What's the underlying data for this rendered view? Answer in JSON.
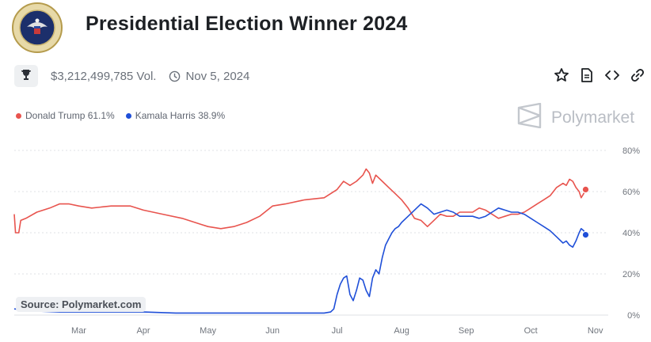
{
  "header": {
    "title": "Presidential Election Winner 2024",
    "volume": "$3,212,499,785 Vol.",
    "date": "Nov 5, 2024"
  },
  "seal_text": "SEAL OF THE PRESIDENT OF THE UNITED STATES",
  "actions": {
    "icons": [
      "star-icon",
      "document-icon",
      "code-icon",
      "link-icon"
    ]
  },
  "brand": {
    "name": "Polymarket"
  },
  "legend": {
    "trump_label": "Donald Trump 61.1%",
    "harris_label": "Kamala Harris 38.9%"
  },
  "source": "Source: Polymarket.com",
  "colors": {
    "trump": "#e8544e",
    "harris": "#1f4fd8",
    "grid": "#dfe2e6"
  },
  "chart_data": {
    "type": "line",
    "y_ticks": [
      "0%",
      "20%",
      "40%",
      "60%",
      "80%"
    ],
    "ylim": [
      0,
      80
    ],
    "x_ticks": [
      "Mar",
      "Apr",
      "May",
      "Jun",
      "Jul",
      "Aug",
      "Sep",
      "Oct",
      "Nov"
    ],
    "x_tick_pos": [
      2.0,
      3.0,
      4.0,
      5.0,
      6.0,
      7.0,
      8.0,
      9.0,
      10.0
    ],
    "xlim": [
      1.0,
      10.2
    ],
    "grid": true,
    "series": [
      {
        "name": "Donald Trump",
        "color": "#e8544e",
        "points": [
          [
            1.0,
            49
          ],
          [
            1.02,
            40
          ],
          [
            1.07,
            40
          ],
          [
            1.1,
            46
          ],
          [
            1.18,
            47
          ],
          [
            1.35,
            50
          ],
          [
            1.55,
            52
          ],
          [
            1.7,
            54
          ],
          [
            1.85,
            54
          ],
          [
            2.0,
            53
          ],
          [
            2.2,
            52
          ],
          [
            2.5,
            53
          ],
          [
            2.8,
            53
          ],
          [
            3.0,
            51
          ],
          [
            3.3,
            49
          ],
          [
            3.6,
            47
          ],
          [
            3.9,
            44
          ],
          [
            4.0,
            43
          ],
          [
            4.2,
            42
          ],
          [
            4.4,
            43
          ],
          [
            4.6,
            45
          ],
          [
            4.8,
            48
          ],
          [
            5.0,
            53
          ],
          [
            5.2,
            54
          ],
          [
            5.5,
            56
          ],
          [
            5.8,
            57
          ],
          [
            6.0,
            61
          ],
          [
            6.1,
            65
          ],
          [
            6.2,
            63
          ],
          [
            6.3,
            65
          ],
          [
            6.4,
            68
          ],
          [
            6.45,
            71
          ],
          [
            6.5,
            69
          ],
          [
            6.55,
            64
          ],
          [
            6.6,
            68
          ],
          [
            6.7,
            65
          ],
          [
            6.8,
            62
          ],
          [
            6.9,
            59
          ],
          [
            7.0,
            56
          ],
          [
            7.1,
            52
          ],
          [
            7.2,
            47
          ],
          [
            7.3,
            46
          ],
          [
            7.4,
            43
          ],
          [
            7.5,
            46
          ],
          [
            7.6,
            49
          ],
          [
            7.7,
            48
          ],
          [
            7.8,
            48
          ],
          [
            7.9,
            50
          ],
          [
            8.0,
            50
          ],
          [
            8.1,
            50
          ],
          [
            8.2,
            52
          ],
          [
            8.3,
            51
          ],
          [
            8.4,
            49
          ],
          [
            8.5,
            47
          ],
          [
            8.6,
            48
          ],
          [
            8.7,
            49
          ],
          [
            8.8,
            49
          ],
          [
            8.9,
            50
          ],
          [
            9.0,
            52
          ],
          [
            9.1,
            54
          ],
          [
            9.2,
            56
          ],
          [
            9.3,
            58
          ],
          [
            9.4,
            62
          ],
          [
            9.5,
            64
          ],
          [
            9.55,
            63
          ],
          [
            9.6,
            66
          ],
          [
            9.65,
            65
          ],
          [
            9.7,
            62
          ],
          [
            9.75,
            60
          ],
          [
            9.78,
            57
          ],
          [
            9.82,
            59
          ],
          [
            9.85,
            61
          ]
        ]
      },
      {
        "name": "Kamala Harris",
        "color": "#1f4fd8",
        "points": [
          [
            1.0,
            3
          ],
          [
            1.3,
            2
          ],
          [
            1.7,
            1.5
          ],
          [
            2.0,
            1.5
          ],
          [
            2.5,
            1.5
          ],
          [
            3.0,
            1.5
          ],
          [
            3.5,
            1
          ],
          [
            4.0,
            1
          ],
          [
            4.5,
            1
          ],
          [
            5.0,
            1
          ],
          [
            5.5,
            1
          ],
          [
            5.8,
            1
          ],
          [
            5.9,
            1.5
          ],
          [
            5.95,
            3
          ],
          [
            6.0,
            10
          ],
          [
            6.05,
            15
          ],
          [
            6.1,
            18
          ],
          [
            6.15,
            19
          ],
          [
            6.2,
            10
          ],
          [
            6.25,
            7
          ],
          [
            6.3,
            12
          ],
          [
            6.35,
            18
          ],
          [
            6.4,
            17
          ],
          [
            6.45,
            12
          ],
          [
            6.5,
            9
          ],
          [
            6.55,
            18
          ],
          [
            6.6,
            22
          ],
          [
            6.65,
            20
          ],
          [
            6.7,
            28
          ],
          [
            6.75,
            34
          ],
          [
            6.8,
            37
          ],
          [
            6.85,
            40
          ],
          [
            6.9,
            42
          ],
          [
            6.95,
            43
          ],
          [
            7.0,
            45
          ],
          [
            7.1,
            48
          ],
          [
            7.2,
            51
          ],
          [
            7.3,
            54
          ],
          [
            7.4,
            52
          ],
          [
            7.5,
            49
          ],
          [
            7.6,
            50
          ],
          [
            7.7,
            51
          ],
          [
            7.8,
            50
          ],
          [
            7.9,
            48
          ],
          [
            8.0,
            48
          ],
          [
            8.1,
            48
          ],
          [
            8.2,
            47
          ],
          [
            8.3,
            48
          ],
          [
            8.4,
            50
          ],
          [
            8.5,
            52
          ],
          [
            8.6,
            51
          ],
          [
            8.7,
            50
          ],
          [
            8.8,
            50
          ],
          [
            8.9,
            49
          ],
          [
            9.0,
            47
          ],
          [
            9.1,
            45
          ],
          [
            9.2,
            43
          ],
          [
            9.3,
            41
          ],
          [
            9.4,
            38
          ],
          [
            9.5,
            35
          ],
          [
            9.55,
            36
          ],
          [
            9.6,
            34
          ],
          [
            9.65,
            33
          ],
          [
            9.7,
            36
          ],
          [
            9.75,
            40
          ],
          [
            9.78,
            42
          ],
          [
            9.82,
            41
          ],
          [
            9.85,
            39
          ]
        ]
      }
    ]
  }
}
